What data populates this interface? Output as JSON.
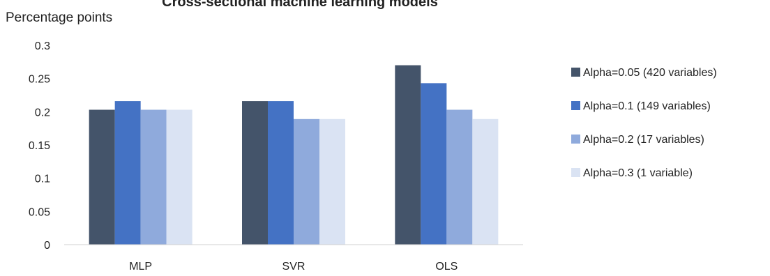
{
  "chart_data": {
    "type": "bar",
    "title": "Cross-sectional machine learning models",
    "xlabel": "",
    "ylabel": "Percentage points",
    "ylim": [
      0,
      0.3
    ],
    "yticks": [
      "0",
      "0.05",
      "0.1",
      "0.15",
      "0.2",
      "0.25",
      "0.3"
    ],
    "grid": false,
    "legend_position": "right",
    "categories": [
      "MLP",
      "SVR",
      "OLS"
    ],
    "series": [
      {
        "name": "Alpha=0.05 (420 variables)",
        "color": "#44546a",
        "values": [
          0.203,
          0.216,
          0.27
        ]
      },
      {
        "name": "Alpha=0.1 (149 variables)",
        "color": "#4472c4",
        "values": [
          0.216,
          0.216,
          0.243
        ]
      },
      {
        "name": "Alpha=0.2 (17 variables)",
        "color": "#8faadc",
        "values": [
          0.203,
          0.189,
          0.203
        ]
      },
      {
        "name": "Alpha=0.3 (1 variable)",
        "color": "#dae3f3",
        "values": [
          0.203,
          0.189,
          0.189
        ]
      }
    ]
  }
}
